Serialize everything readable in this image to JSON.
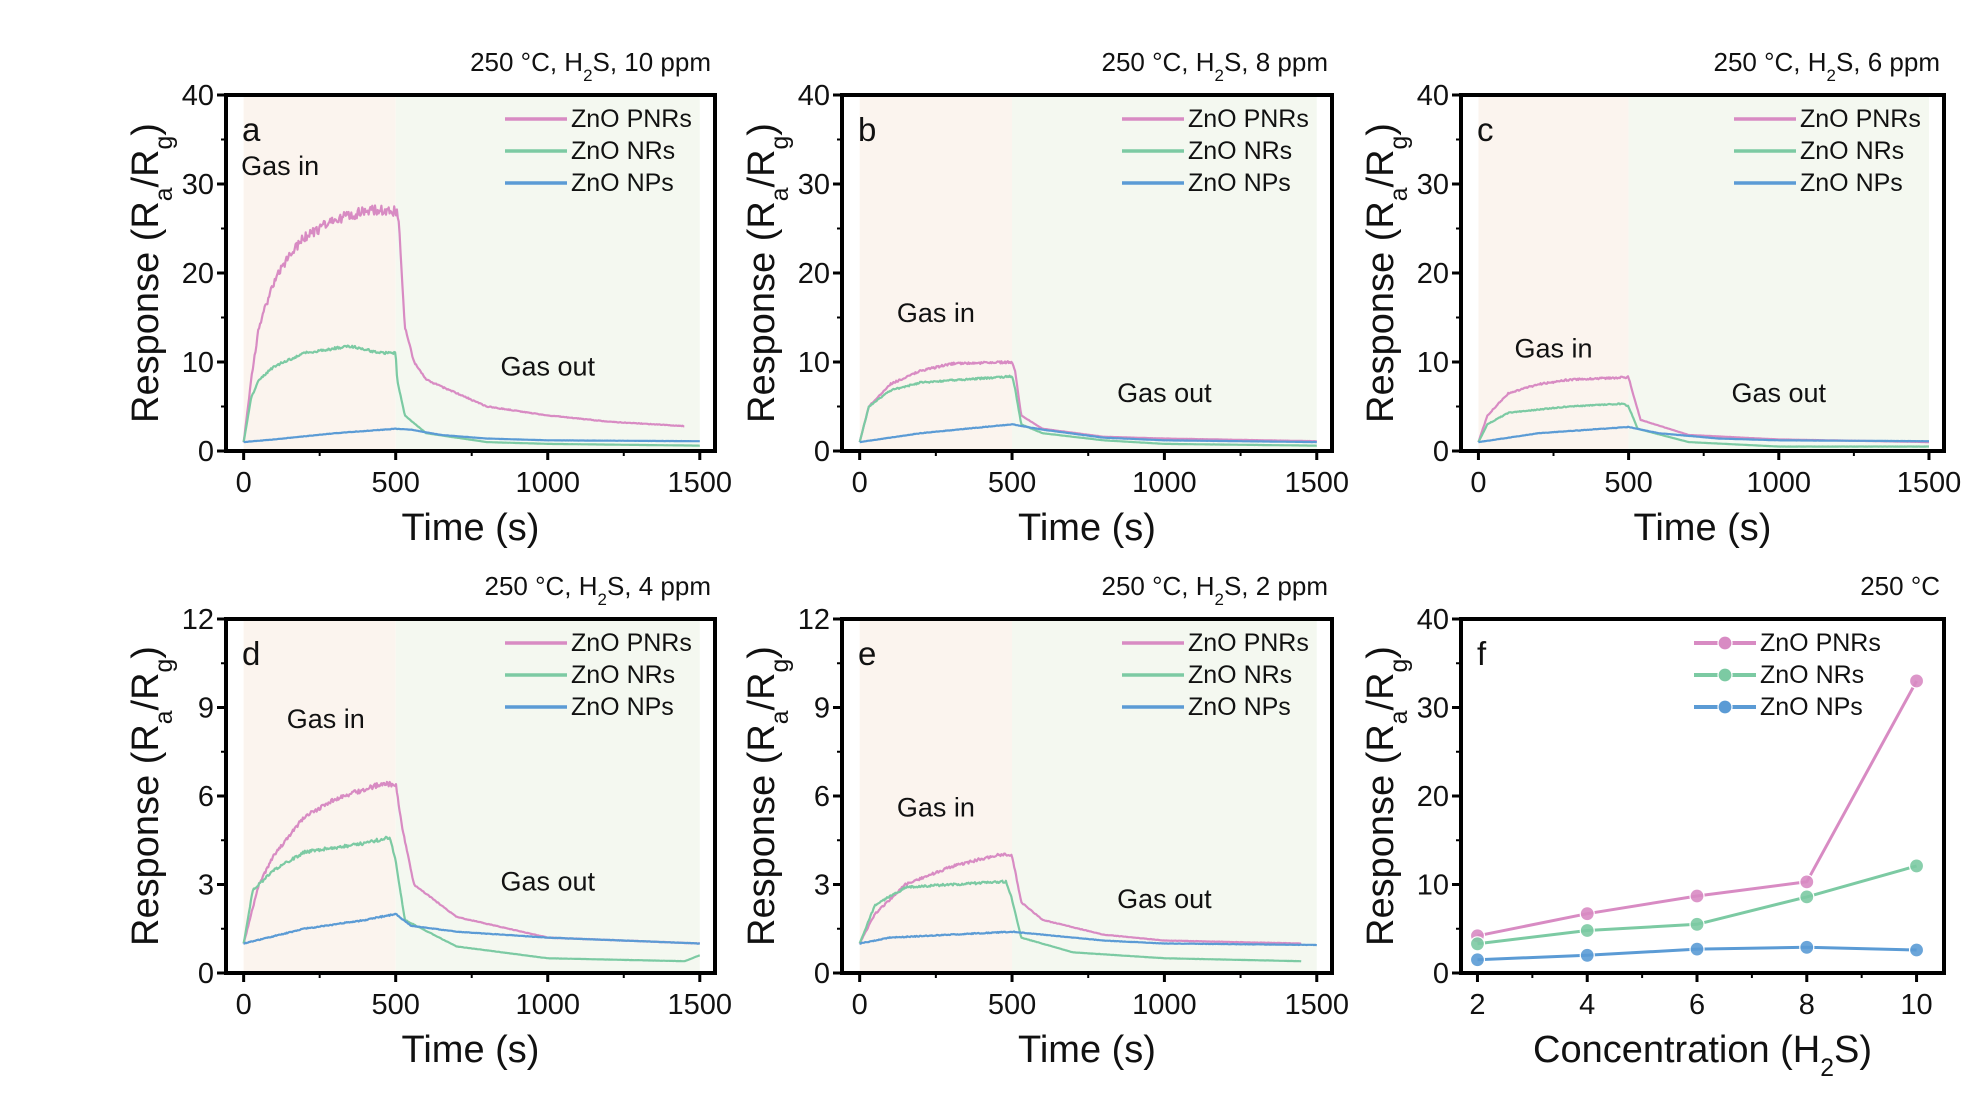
{
  "colors": {
    "ZnO PNRs": "#d88bc3",
    "ZnO NRs": "#7ccaa3",
    "ZnO NPs": "#5b9bd5",
    "gas_in_bg": "#fbf4ee",
    "gas_out_bg": "#f4f8f0"
  },
  "chart_data": [
    {
      "type": "line",
      "panel": "a",
      "title": "250 °C, H_2S, 10 ppm",
      "xlabel": "Time (s)",
      "ylabel": "Response (R_a/R_g)",
      "xlim": [
        0,
        1500
      ],
      "ylim": [
        0,
        40
      ],
      "xticks": [
        0,
        500,
        1000,
        1500
      ],
      "yticks": [
        0,
        10,
        20,
        30,
        40
      ],
      "annotations": [
        "Gas in",
        "Gas out"
      ],
      "legend": "top-right",
      "series": [
        {
          "name": "ZnO PNRs",
          "points": [
            [
              0,
              1
            ],
            [
              25,
              8
            ],
            [
              50,
              14
            ],
            [
              100,
              19
            ],
            [
              150,
              22
            ],
            [
              200,
              24
            ],
            [
              300,
              26
            ],
            [
              400,
              27
            ],
            [
              500,
              27
            ],
            [
              510,
              26
            ],
            [
              530,
              14
            ],
            [
              560,
              10
            ],
            [
              600,
              8
            ],
            [
              700,
              6.5
            ],
            [
              800,
              5
            ],
            [
              1000,
              4
            ],
            [
              1200,
              3.3
            ],
            [
              1450,
              2.8
            ]
          ]
        },
        {
          "name": "ZnO NRs",
          "points": [
            [
              0,
              1
            ],
            [
              25,
              6
            ],
            [
              50,
              8
            ],
            [
              100,
              9.5
            ],
            [
              200,
              11
            ],
            [
              350,
              11.8
            ],
            [
              450,
              11
            ],
            [
              500,
              11
            ],
            [
              505,
              8
            ],
            [
              530,
              4
            ],
            [
              600,
              2
            ],
            [
              800,
              1
            ],
            [
              1000,
              0.8
            ],
            [
              1500,
              0.6
            ]
          ]
        },
        {
          "name": "ZnO NPs",
          "points": [
            [
              0,
              1
            ],
            [
              100,
              1.3
            ],
            [
              300,
              2
            ],
            [
              500,
              2.5
            ],
            [
              550,
              2.4
            ],
            [
              650,
              1.8
            ],
            [
              800,
              1.4
            ],
            [
              1000,
              1.2
            ],
            [
              1500,
              1.1
            ]
          ]
        }
      ]
    },
    {
      "type": "line",
      "panel": "b",
      "title": "250 °C, H_2S, 8 ppm",
      "xlabel": "Time (s)",
      "ylabel": "Response (R_a/R_g)",
      "xlim": [
        0,
        1500
      ],
      "ylim": [
        0,
        40
      ],
      "xticks": [
        0,
        500,
        1000,
        1500
      ],
      "yticks": [
        0,
        10,
        20,
        30,
        40
      ],
      "annotations": [
        "Gas in",
        "Gas out"
      ],
      "legend": "top-right",
      "series": [
        {
          "name": "ZnO PNRs",
          "points": [
            [
              0,
              1
            ],
            [
              30,
              5
            ],
            [
              100,
              7.5
            ],
            [
              200,
              9
            ],
            [
              300,
              9.8
            ],
            [
              500,
              10
            ],
            [
              510,
              9
            ],
            [
              530,
              4
            ],
            [
              600,
              2.5
            ],
            [
              800,
              1.6
            ],
            [
              1000,
              1.4
            ],
            [
              1500,
              1.1
            ]
          ]
        },
        {
          "name": "ZnO NRs",
          "points": [
            [
              0,
              1
            ],
            [
              30,
              5
            ],
            [
              100,
              6.8
            ],
            [
              200,
              7.7
            ],
            [
              500,
              8.4
            ],
            [
              510,
              7
            ],
            [
              530,
              3
            ],
            [
              600,
              2
            ],
            [
              800,
              1.2
            ],
            [
              1000,
              0.8
            ],
            [
              1500,
              0.6
            ]
          ]
        },
        {
          "name": "ZnO NPs",
          "points": [
            [
              0,
              1
            ],
            [
              200,
              2
            ],
            [
              500,
              3
            ],
            [
              600,
              2.4
            ],
            [
              800,
              1.5
            ],
            [
              1000,
              1.2
            ],
            [
              1500,
              1
            ]
          ]
        }
      ]
    },
    {
      "type": "line",
      "panel": "c",
      "title": "250 °C, H_2S, 6 ppm",
      "xlabel": "Time (s)",
      "ylabel": "Response (R_a/R_g)",
      "xlim": [
        0,
        1500
      ],
      "ylim": [
        0,
        40
      ],
      "xticks": [
        0,
        500,
        1000,
        1500
      ],
      "yticks": [
        0,
        10,
        20,
        30,
        40
      ],
      "annotations": [
        "Gas in",
        "Gas out"
      ],
      "legend": "top-right",
      "series": [
        {
          "name": "ZnO PNRs",
          "points": [
            [
              0,
              1
            ],
            [
              30,
              4
            ],
            [
              100,
              6.5
            ],
            [
              200,
              7.5
            ],
            [
              300,
              8
            ],
            [
              500,
              8.3
            ],
            [
              510,
              7
            ],
            [
              540,
              3.5
            ],
            [
              700,
              1.8
            ],
            [
              1000,
              1.3
            ],
            [
              1500,
              1
            ]
          ]
        },
        {
          "name": "ZnO NRs",
          "points": [
            [
              0,
              1
            ],
            [
              30,
              3
            ],
            [
              100,
              4.3
            ],
            [
              300,
              5
            ],
            [
              480,
              5.3
            ],
            [
              500,
              5
            ],
            [
              530,
              2.5
            ],
            [
              700,
              1
            ],
            [
              1000,
              0.5
            ],
            [
              1500,
              0.5
            ]
          ]
        },
        {
          "name": "ZnO NPs",
          "points": [
            [
              0,
              1
            ],
            [
              200,
              2
            ],
            [
              500,
              2.7
            ],
            [
              600,
              2
            ],
            [
              800,
              1.4
            ],
            [
              1000,
              1.2
            ],
            [
              1500,
              1.1
            ]
          ]
        }
      ]
    },
    {
      "type": "line",
      "panel": "d",
      "title": "250 °C, H_2S, 4 ppm",
      "xlabel": "Time (s)",
      "ylabel": "Response (R_a/R_g)",
      "xlim": [
        0,
        1500
      ],
      "ylim": [
        0,
        12
      ],
      "xticks": [
        0,
        500,
        1000,
        1500
      ],
      "yticks": [
        0,
        3,
        6,
        9,
        12
      ],
      "annotations": [
        "Gas in",
        "Gas out"
      ],
      "legend": "top-right",
      "series": [
        {
          "name": "ZnO PNRs",
          "points": [
            [
              0,
              1
            ],
            [
              50,
              3
            ],
            [
              100,
              4
            ],
            [
              200,
              5.3
            ],
            [
              300,
              5.9
            ],
            [
              450,
              6.4
            ],
            [
              500,
              6.4
            ],
            [
              520,
              5
            ],
            [
              560,
              3
            ],
            [
              700,
              1.9
            ],
            [
              1000,
              1.2
            ],
            [
              1500,
              1
            ]
          ]
        },
        {
          "name": "ZnO NRs",
          "points": [
            [
              0,
              1
            ],
            [
              30,
              2.8
            ],
            [
              100,
              3.5
            ],
            [
              200,
              4.1
            ],
            [
              400,
              4.4
            ],
            [
              480,
              4.6
            ],
            [
              500,
              3.8
            ],
            [
              530,
              1.8
            ],
            [
              700,
              0.9
            ],
            [
              1000,
              0.5
            ],
            [
              1450,
              0.4
            ],
            [
              1500,
              0.6
            ]
          ]
        },
        {
          "name": "ZnO NPs",
          "points": [
            [
              0,
              1
            ],
            [
              200,
              1.5
            ],
            [
              400,
              1.8
            ],
            [
              500,
              2
            ],
            [
              550,
              1.6
            ],
            [
              700,
              1.4
            ],
            [
              1000,
              1.2
            ],
            [
              1500,
              1
            ]
          ]
        }
      ]
    },
    {
      "type": "line",
      "panel": "e",
      "title": "250 °C, H_2S, 2 ppm",
      "xlabel": "Time (s)",
      "ylabel": "Response (R_a/R_g)",
      "xlim": [
        0,
        1500
      ],
      "ylim": [
        0,
        12
      ],
      "xticks": [
        0,
        500,
        1000,
        1500
      ],
      "yticks": [
        0,
        3,
        6,
        9,
        12
      ],
      "annotations": [
        "Gas in",
        "Gas out"
      ],
      "legend": "top-right",
      "series": [
        {
          "name": "ZnO PNRs",
          "points": [
            [
              0,
              1
            ],
            [
              50,
              2
            ],
            [
              150,
              3
            ],
            [
              300,
              3.6
            ],
            [
              450,
              4
            ],
            [
              500,
              4
            ],
            [
              530,
              2.4
            ],
            [
              600,
              1.8
            ],
            [
              800,
              1.3
            ],
            [
              1000,
              1.1
            ],
            [
              1450,
              1
            ]
          ]
        },
        {
          "name": "ZnO NRs",
          "points": [
            [
              0,
              1
            ],
            [
              50,
              2.3
            ],
            [
              150,
              2.9
            ],
            [
              300,
              3
            ],
            [
              480,
              3.1
            ],
            [
              500,
              2.5
            ],
            [
              530,
              1.2
            ],
            [
              700,
              0.7
            ],
            [
              1000,
              0.5
            ],
            [
              1450,
              0.4
            ]
          ]
        },
        {
          "name": "ZnO NPs",
          "points": [
            [
              0,
              1
            ],
            [
              100,
              1.2
            ],
            [
              300,
              1.3
            ],
            [
              500,
              1.4
            ],
            [
              600,
              1.3
            ],
            [
              800,
              1.1
            ],
            [
              1000,
              1
            ],
            [
              1500,
              0.95
            ]
          ]
        }
      ]
    },
    {
      "type": "line",
      "panel": "f",
      "title": "250 °C",
      "xlabel": "Concentration (H_2S)",
      "ylabel": "Response (R_a/R_g)",
      "xlim": [
        2,
        10
      ],
      "ylim": [
        0,
        40
      ],
      "xticks": [
        2,
        4,
        6,
        8,
        10
      ],
      "yticks": [
        0,
        10,
        20,
        30,
        40
      ],
      "annotations": [],
      "legend": "top-right",
      "markers": true,
      "series": [
        {
          "name": "ZnO PNRs",
          "points": [
            [
              2,
              4.2
            ],
            [
              4,
              6.7
            ],
            [
              6,
              8.7
            ],
            [
              8,
              10.3
            ],
            [
              10,
              33
            ]
          ]
        },
        {
          "name": "ZnO NRs",
          "points": [
            [
              2,
              3.3
            ],
            [
              4,
              4.8
            ],
            [
              6,
              5.5
            ],
            [
              8,
              8.6
            ],
            [
              10,
              12.1
            ]
          ]
        },
        {
          "name": "ZnO NPs",
          "points": [
            [
              2,
              1.5
            ],
            [
              4,
              2
            ],
            [
              6,
              2.7
            ],
            [
              8,
              2.9
            ],
            [
              10,
              2.6
            ]
          ]
        }
      ]
    }
  ]
}
